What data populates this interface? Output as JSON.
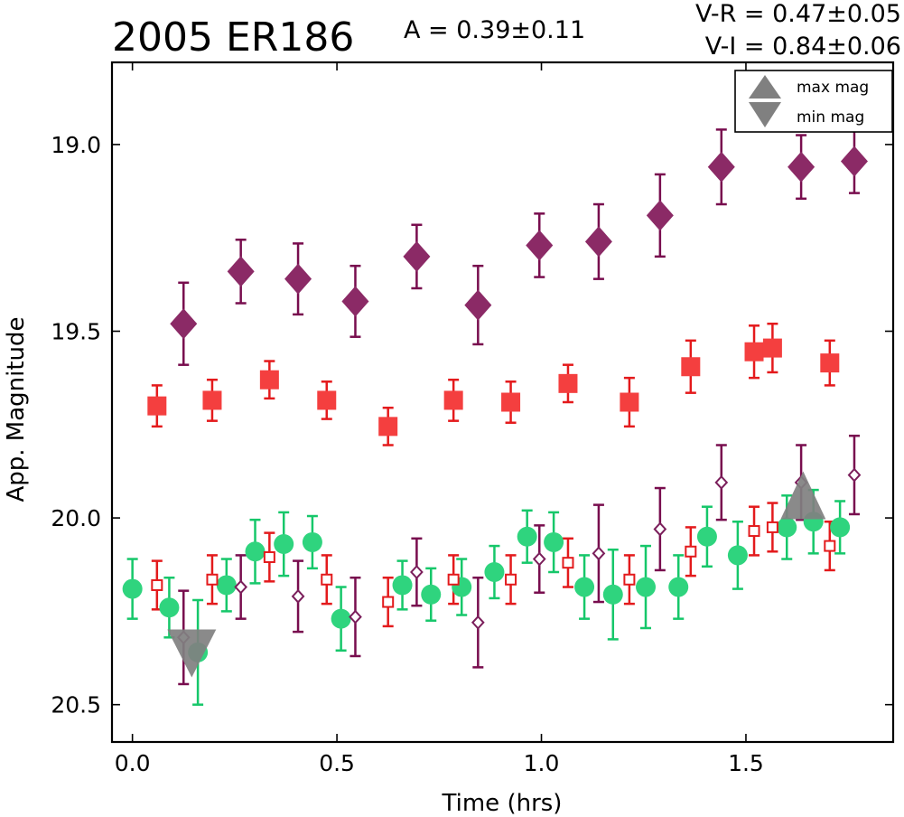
{
  "chart_data": {
    "type": "scatter",
    "title": "2005 ER186",
    "annotations": {
      "amplitude": "A  = 0.39±0.11",
      "v_minus_r": "V-R = 0.47±0.05",
      "v_minus_i": "V-I  = 0.84±0.06"
    },
    "xlabel": "Time (hrs)",
    "ylabel": "App. Magnitude",
    "xlim": [
      -0.05,
      1.86
    ],
    "ylim": [
      20.6,
      18.78
    ],
    "y_inverted": true,
    "x_ticks": [
      0.0,
      0.5,
      1.0,
      1.5
    ],
    "x_tick_labels": [
      "0.0",
      "0.5",
      "1.0",
      "1.5"
    ],
    "y_ticks": [
      19.0,
      19.5,
      20.0,
      20.5
    ],
    "y_tick_labels": [
      "19.0",
      "19.5",
      "20.0",
      "20.5"
    ],
    "grid": false,
    "legend": {
      "placement": "top-right",
      "entries": [
        {
          "label": "max mag",
          "marker": "triangle-up",
          "color": "#808080"
        },
        {
          "label": "min mag",
          "marker": "triangle-down",
          "color": "#808080"
        }
      ]
    },
    "series": [
      {
        "marker": "diamond-filled",
        "color": "#8b2a66",
        "errcolor": "#780d4e",
        "points": [
          [
            0.125,
            19.48,
            0.11
          ],
          [
            0.265,
            19.34,
            0.085
          ],
          [
            0.405,
            19.36,
            0.095
          ],
          [
            0.545,
            19.42,
            0.095
          ],
          [
            0.695,
            19.3,
            0.085
          ],
          [
            0.845,
            19.43,
            0.105
          ],
          [
            0.995,
            19.27,
            0.085
          ],
          [
            1.14,
            19.26,
            0.1
          ],
          [
            1.29,
            19.19,
            0.11
          ],
          [
            1.44,
            19.06,
            0.1
          ],
          [
            1.635,
            19.06,
            0.085
          ],
          [
            1.765,
            19.045,
            0.085
          ]
        ]
      },
      {
        "marker": "square-filled",
        "color": "#f43f3f",
        "errcolor": "#e41a1c",
        "points": [
          [
            0.06,
            19.7,
            0.055
          ],
          [
            0.195,
            19.685,
            0.055
          ],
          [
            0.335,
            19.63,
            0.05
          ],
          [
            0.475,
            19.685,
            0.05
          ],
          [
            0.625,
            19.755,
            0.05
          ],
          [
            0.785,
            19.685,
            0.055
          ],
          [
            0.925,
            19.69,
            0.055
          ],
          [
            1.065,
            19.64,
            0.05
          ],
          [
            1.215,
            19.69,
            0.065
          ],
          [
            1.365,
            19.595,
            0.07
          ],
          [
            1.52,
            19.555,
            0.07
          ],
          [
            1.565,
            19.545,
            0.065
          ],
          [
            1.705,
            19.585,
            0.06
          ]
        ]
      },
      {
        "marker": "circle-filled",
        "color": "#2fd47e",
        "errcolor": "#16c76a",
        "points": [
          [
            0.0,
            20.19,
            0.08
          ],
          [
            0.09,
            20.24,
            0.08
          ],
          [
            0.16,
            20.36,
            0.14
          ],
          [
            0.23,
            20.18,
            0.07
          ],
          [
            0.3,
            20.09,
            0.085
          ],
          [
            0.37,
            20.07,
            0.085
          ],
          [
            0.44,
            20.065,
            0.07
          ],
          [
            0.51,
            20.27,
            0.085
          ],
          [
            0.66,
            20.18,
            0.065
          ],
          [
            0.73,
            20.205,
            0.07
          ],
          [
            0.805,
            20.185,
            0.075
          ],
          [
            0.885,
            20.145,
            0.07
          ],
          [
            0.965,
            20.05,
            0.07
          ],
          [
            1.03,
            20.065,
            0.08
          ],
          [
            1.105,
            20.185,
            0.085
          ],
          [
            1.175,
            20.205,
            0.12
          ],
          [
            1.255,
            20.185,
            0.11
          ],
          [
            1.335,
            20.185,
            0.085
          ],
          [
            1.405,
            20.05,
            0.08
          ],
          [
            1.48,
            20.1,
            0.09
          ],
          [
            1.6,
            20.025,
            0.085
          ],
          [
            1.665,
            20.01,
            0.085
          ],
          [
            1.73,
            20.025,
            0.07
          ]
        ]
      },
      {
        "marker": "square-open",
        "color": "#e31a1c",
        "errcolor": "#e31a1c",
        "points": [
          [
            0.06,
            20.18,
            0.065
          ],
          [
            0.195,
            20.165,
            0.065
          ],
          [
            0.335,
            20.105,
            0.065
          ],
          [
            0.475,
            20.165,
            0.065
          ],
          [
            0.625,
            20.225,
            0.065
          ],
          [
            0.785,
            20.165,
            0.065
          ],
          [
            0.925,
            20.165,
            0.065
          ],
          [
            1.065,
            20.12,
            0.065
          ],
          [
            1.215,
            20.165,
            0.065
          ],
          [
            1.365,
            20.09,
            0.065
          ],
          [
            1.52,
            20.035,
            0.065
          ],
          [
            1.565,
            20.025,
            0.065
          ],
          [
            1.705,
            20.075,
            0.065
          ]
        ]
      },
      {
        "marker": "diamond-open",
        "color": "#7b1e5b",
        "errcolor": "#780d4e",
        "points": [
          [
            0.125,
            20.32,
            0.125
          ],
          [
            0.265,
            20.185,
            0.085
          ],
          [
            0.405,
            20.21,
            0.095
          ],
          [
            0.545,
            20.265,
            0.105
          ],
          [
            0.695,
            20.145,
            0.09
          ],
          [
            0.845,
            20.28,
            0.12
          ],
          [
            0.995,
            20.11,
            0.09
          ],
          [
            1.14,
            20.095,
            0.13
          ],
          [
            1.29,
            20.03,
            0.11
          ],
          [
            1.44,
            19.905,
            0.1
          ],
          [
            1.635,
            19.905,
            0.1
          ],
          [
            1.765,
            19.885,
            0.105
          ]
        ]
      }
    ],
    "max_mag_marker": {
      "x": 1.64,
      "y": 19.955,
      "color": "#808080"
    },
    "min_mag_marker": {
      "x": 0.145,
      "y": 20.33,
      "color": "#808080"
    }
  }
}
